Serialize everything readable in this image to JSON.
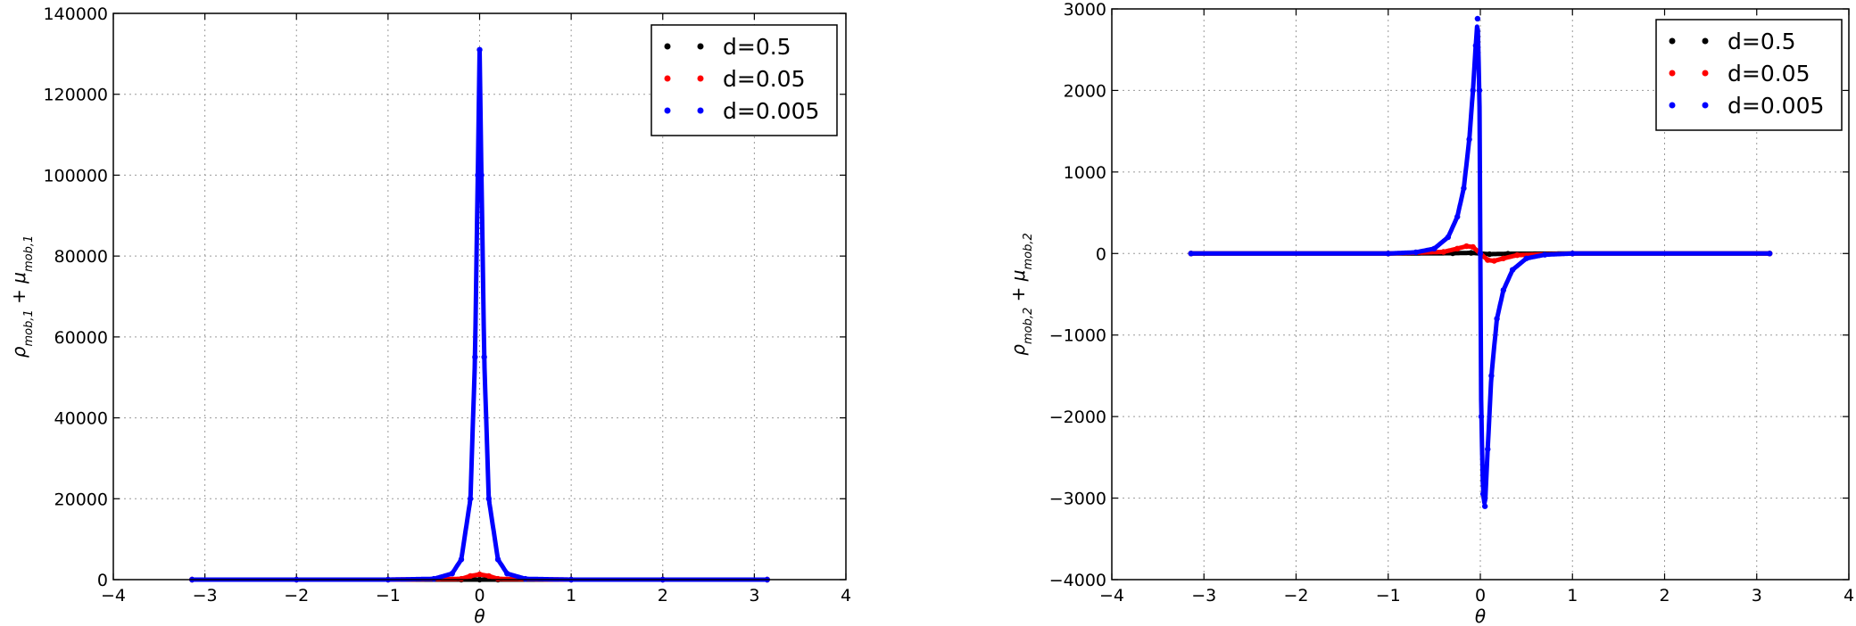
{
  "chart_data": [
    {
      "type": "scatter",
      "xlabel": "θ",
      "ylabel": "ρ_{mob,1} + μ_{mob,1}",
      "xlim": [
        -4,
        4
      ],
      "ylim": [
        0,
        140000
      ],
      "xticks": [
        "−4",
        "−3",
        "−2",
        "−1",
        "0",
        "1",
        "2",
        "3",
        "4"
      ],
      "yticks": [
        "0",
        "20000",
        "40000",
        "60000",
        "80000",
        "100000",
        "120000",
        "140000"
      ],
      "grid": true,
      "legend_position": "top-right",
      "series": [
        {
          "name": "d=0.5",
          "color": "#000000",
          "x": [
            -3.14,
            -2,
            -1,
            -0.2,
            0,
            0.2,
            1,
            2,
            3.14
          ],
          "y": [
            0,
            0,
            0,
            0,
            2,
            0,
            0,
            0,
            0
          ]
        },
        {
          "name": "d=0.05",
          "color": "#ff0000",
          "x": [
            -3.14,
            -2,
            -1,
            -0.2,
            -0.1,
            0,
            0.1,
            0.2,
            1,
            2,
            3.14
          ],
          "y": [
            0,
            0,
            0,
            200,
            900,
            1300,
            900,
            200,
            0,
            0,
            0
          ]
        },
        {
          "name": "d=0.005",
          "color": "#0000ff",
          "x": [
            -3.14,
            -2,
            -1,
            -0.5,
            -0.3,
            -0.2,
            -0.1,
            -0.05,
            -0.02,
            0,
            0.02,
            0.05,
            0.1,
            0.2,
            0.3,
            0.5,
            1,
            2,
            3.14
          ],
          "y": [
            0,
            0,
            0,
            200,
            1500,
            5000,
            20000,
            55000,
            100000,
            131000,
            100000,
            55000,
            20000,
            5000,
            1500,
            200,
            0,
            0,
            0
          ]
        }
      ]
    },
    {
      "type": "scatter",
      "xlabel": "θ",
      "ylabel": "ρ_{mob,2} + μ_{mob,2}",
      "xlim": [
        -4,
        4
      ],
      "ylim": [
        -4000,
        3000
      ],
      "xticks": [
        "−4",
        "−3",
        "−2",
        "−1",
        "0",
        "1",
        "2",
        "3",
        "4"
      ],
      "yticks": [
        "−4000",
        "−3000",
        "−2000",
        "−1000",
        "0",
        "1000",
        "2000",
        "3000"
      ],
      "grid": true,
      "legend_position": "top-right",
      "series": [
        {
          "name": "d=0.5",
          "color": "#000000",
          "x": [
            -3.14,
            -1,
            -0.3,
            -0.1,
            0,
            0.1,
            0.3,
            1,
            3.14
          ],
          "y": [
            0,
            0,
            3,
            8,
            0,
            -8,
            -3,
            0,
            0
          ]
        },
        {
          "name": "d=0.05",
          "color": "#ff0000",
          "x": [
            -3.14,
            -1,
            -0.4,
            -0.25,
            -0.15,
            -0.08,
            0,
            0.08,
            0.15,
            0.25,
            0.4,
            1,
            3.14
          ],
          "y": [
            0,
            0,
            20,
            60,
            90,
            80,
            0,
            -80,
            -90,
            -60,
            -20,
            0,
            0
          ]
        },
        {
          "name": "d=0.005",
          "color": "#0000ff",
          "x": [
            -3.14,
            -1,
            -0.7,
            -0.5,
            -0.35,
            -0.25,
            -0.18,
            -0.12,
            -0.08,
            -0.05,
            -0.03,
            -0.01,
            0,
            0.01,
            0.03,
            0.05,
            0.08,
            0.12,
            0.18,
            0.25,
            0.35,
            0.5,
            0.7,
            1,
            3.14
          ],
          "y": [
            0,
            0,
            15,
            60,
            200,
            450,
            800,
            1400,
            2000,
            2550,
            2880,
            2000,
            0,
            -2000,
            -2950,
            -3100,
            -2400,
            -1500,
            -800,
            -450,
            -200,
            -60,
            -15,
            0,
            0
          ]
        }
      ]
    }
  ]
}
